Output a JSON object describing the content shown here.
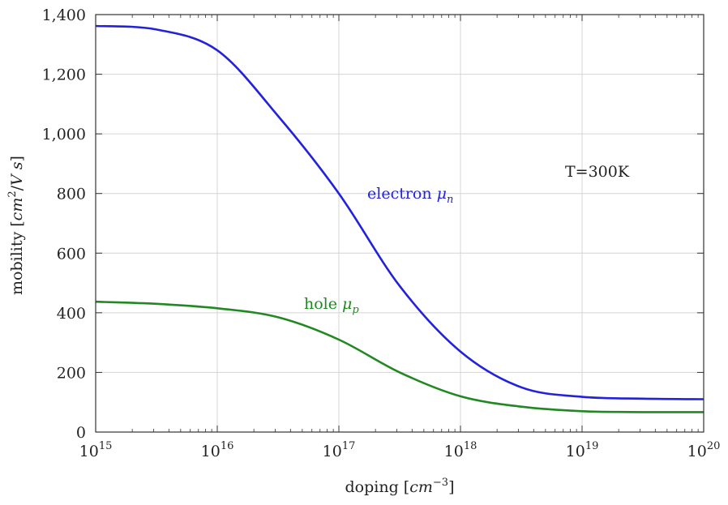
{
  "chart_data": {
    "type": "line",
    "x_scale": "log",
    "grid": true,
    "xlim": [
      1000000000000000.0,
      1e+20
    ],
    "ylim": [
      0,
      1400
    ],
    "x_ticks": [
      {
        "base": "10",
        "exp": "15"
      },
      {
        "base": "10",
        "exp": "16"
      },
      {
        "base": "10",
        "exp": "17"
      },
      {
        "base": "10",
        "exp": "18"
      },
      {
        "base": "10",
        "exp": "19"
      },
      {
        "base": "10",
        "exp": "20"
      }
    ],
    "y_ticks": [
      "0",
      "200",
      "400",
      "600",
      "800",
      "1,000",
      "1,200",
      "1,400"
    ],
    "xlabel": {
      "text": "doping ",
      "bracket_open": "[",
      "var": "cm",
      "sup": "−3",
      "bracket_close": "]"
    },
    "ylabel": {
      "text": "mobility ",
      "bracket_open": "[",
      "var1": "cm",
      "sup": "2",
      "slash": "/",
      "var2": "V s",
      "bracket_close": "]"
    },
    "x": [
      1000000000000000.0,
      3160000000000000.0,
      1e+16,
      3.16e+16,
      1e+17,
      3.16e+17,
      1e+18,
      3.16e+18,
      1e+19,
      3.16e+19,
      1e+20
    ],
    "series": [
      {
        "name": "electron μn",
        "color": "#2222dd",
        "values": [
          1362,
          1350,
          1280,
          1060,
          800,
          490,
          270,
          150,
          118,
          112,
          110
        ]
      },
      {
        "name": "hole μp",
        "color": "#228822",
        "values": [
          437,
          430,
          415,
          385,
          310,
          200,
          120,
          85,
          70,
          67,
          67
        ]
      }
    ],
    "annotations": {
      "electron": {
        "text": "electron ",
        "var": "μ",
        "sub": "n",
        "color": "#2222dd"
      },
      "hole": {
        "text": "hole ",
        "var": "μ",
        "sub": "p",
        "color": "#228822"
      },
      "temperature": {
        "text": "T=300K",
        "color": "#222222"
      }
    }
  }
}
